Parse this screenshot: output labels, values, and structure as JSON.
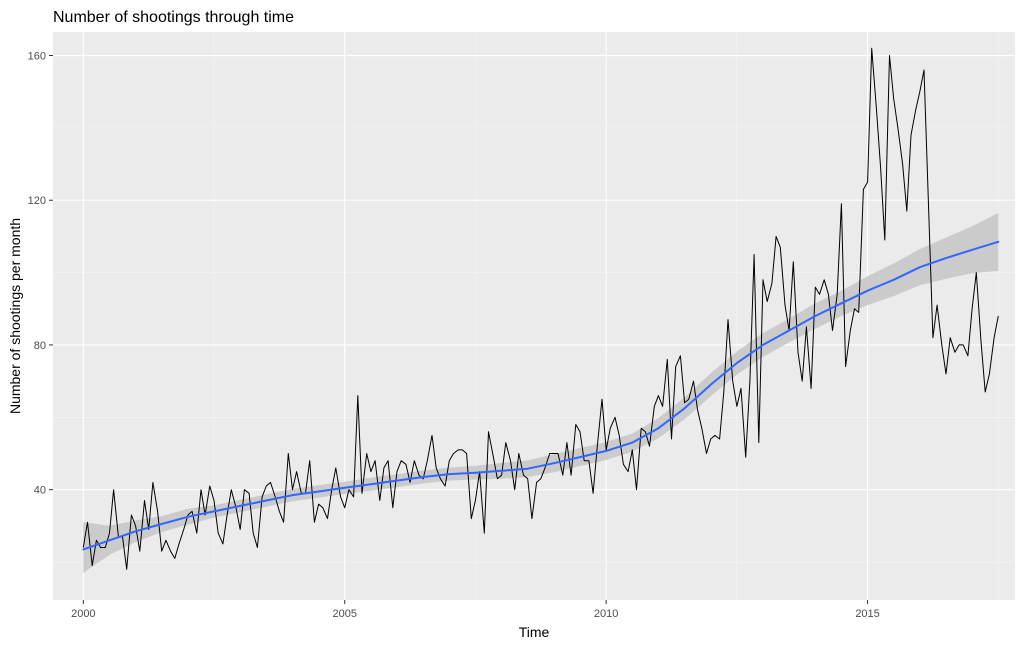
{
  "chart_data": {
    "type": "line",
    "title": "Number of shootings through time",
    "xlabel": "Time",
    "ylabel": "Number of shootings per month",
    "xlim": [
      1999.42,
      2017.82
    ],
    "ylim": [
      9.5,
      166.5
    ],
    "x_ticks": [
      2000,
      2005,
      2010,
      2015
    ],
    "x_tick_labels": [
      "2000",
      "2005",
      "2010",
      "2015"
    ],
    "y_ticks": [
      40,
      80,
      120,
      160
    ],
    "y_tick_labels": [
      "40",
      "80",
      "120",
      "160"
    ],
    "grid": true,
    "legend": "none",
    "colors": {
      "panel": "#ebebeb",
      "grid_major": "#ffffff",
      "grid_minor": "#f5f5f5",
      "series": "#000000",
      "smooth": "#3366ff",
      "ribbon": "#c8c8c8"
    },
    "series": [
      {
        "kind": "monthly-counts",
        "color": "#000000",
        "x": [
          2000.0,
          2000.08,
          2000.17,
          2000.25,
          2000.33,
          2000.42,
          2000.5,
          2000.58,
          2000.67,
          2000.75,
          2000.83,
          2000.92,
          2001.0,
          2001.08,
          2001.17,
          2001.25,
          2001.33,
          2001.42,
          2001.5,
          2001.58,
          2001.67,
          2001.75,
          2001.83,
          2001.92,
          2002.0,
          2002.08,
          2002.17,
          2002.25,
          2002.33,
          2002.42,
          2002.5,
          2002.58,
          2002.67,
          2002.75,
          2002.83,
          2002.92,
          2003.0,
          2003.08,
          2003.17,
          2003.25,
          2003.33,
          2003.42,
          2003.5,
          2003.58,
          2003.67,
          2003.75,
          2003.83,
          2003.92,
          2004.0,
          2004.08,
          2004.17,
          2004.25,
          2004.33,
          2004.42,
          2004.5,
          2004.58,
          2004.67,
          2004.75,
          2004.83,
          2004.92,
          2005.0,
          2005.08,
          2005.17,
          2005.25,
          2005.33,
          2005.42,
          2005.5,
          2005.58,
          2005.67,
          2005.75,
          2005.83,
          2005.92,
          2006.0,
          2006.08,
          2006.17,
          2006.25,
          2006.33,
          2006.42,
          2006.5,
          2006.58,
          2006.67,
          2006.75,
          2006.83,
          2006.92,
          2007.0,
          2007.08,
          2007.17,
          2007.25,
          2007.33,
          2007.42,
          2007.5,
          2007.58,
          2007.67,
          2007.75,
          2007.83,
          2007.92,
          2008.0,
          2008.08,
          2008.17,
          2008.25,
          2008.33,
          2008.42,
          2008.5,
          2008.58,
          2008.67,
          2008.75,
          2008.83,
          2008.92,
          2009.0,
          2009.08,
          2009.17,
          2009.25,
          2009.33,
          2009.42,
          2009.5,
          2009.58,
          2009.67,
          2009.75,
          2009.83,
          2009.92,
          2010.0,
          2010.08,
          2010.17,
          2010.25,
          2010.33,
          2010.42,
          2010.5,
          2010.58,
          2010.67,
          2010.75,
          2010.83,
          2010.92,
          2011.0,
          2011.08,
          2011.17,
          2011.25,
          2011.33,
          2011.42,
          2011.5,
          2011.58,
          2011.67,
          2011.75,
          2011.83,
          2011.92,
          2012.0,
          2012.08,
          2012.17,
          2012.25,
          2012.33,
          2012.42,
          2012.5,
          2012.58,
          2012.67,
          2012.75,
          2012.83,
          2012.92,
          2013.0,
          2013.08,
          2013.17,
          2013.25,
          2013.33,
          2013.42,
          2013.5,
          2013.58,
          2013.67,
          2013.75,
          2013.83,
          2013.92,
          2014.0,
          2014.08,
          2014.17,
          2014.25,
          2014.33,
          2014.42,
          2014.5,
          2014.58,
          2014.67,
          2014.75,
          2014.83,
          2014.92,
          2015.0,
          2015.08,
          2015.17,
          2015.25,
          2015.33,
          2015.42,
          2015.5,
          2015.58,
          2015.67,
          2015.75,
          2015.83,
          2015.92,
          2016.0,
          2016.08,
          2016.17,
          2016.25,
          2016.33,
          2016.42,
          2016.5,
          2016.58,
          2016.67,
          2016.75,
          2016.83,
          2016.92,
          2017.0,
          2017.08,
          2017.17,
          2017.25,
          2017.33,
          2017.42,
          2017.5
        ],
        "values": [
          24,
          31,
          19,
          26,
          24,
          24,
          28,
          40,
          27,
          27,
          18,
          33,
          30,
          23,
          37,
          29,
          42,
          34,
          23,
          26,
          23,
          21,
          25,
          29,
          33,
          34,
          28,
          40,
          33,
          41,
          37,
          28,
          25,
          33,
          40,
          35,
          29,
          40,
          39,
          28,
          24,
          38,
          41,
          42,
          38,
          34,
          31,
          50,
          40,
          45,
          39,
          39,
          48,
          31,
          36,
          35,
          32,
          40,
          46,
          38,
          35,
          40,
          38,
          66,
          39,
          50,
          45,
          48,
          37,
          46,
          48,
          35,
          45,
          48,
          47,
          42,
          48,
          44,
          43,
          48,
          55,
          46,
          43,
          41,
          48,
          50,
          51,
          51,
          50,
          32,
          37,
          45,
          28,
          56,
          50,
          43,
          44,
          53,
          48,
          40,
          50,
          44,
          43,
          32,
          42,
          43,
          46,
          50,
          50,
          50,
          44,
          53,
          44,
          58,
          56,
          48,
          48,
          39,
          52,
          65,
          51,
          57,
          60,
          55,
          47,
          45,
          51,
          40,
          57,
          56,
          52,
          63,
          66,
          63,
          76,
          54,
          74,
          77,
          64,
          65,
          70,
          62,
          57,
          50,
          54,
          55,
          54,
          67,
          87,
          70,
          63,
          68,
          49,
          70,
          105,
          53,
          98,
          92,
          97,
          110,
          107,
          91,
          84,
          103,
          78,
          70,
          85,
          68,
          96,
          94,
          98,
          94,
          84,
          94,
          119,
          74,
          84,
          90,
          89,
          123,
          125,
          162,
          145,
          129,
          109,
          160,
          148,
          140,
          130,
          117,
          138,
          145,
          150,
          156,
          117,
          82,
          91,
          80,
          72,
          82,
          78,
          80,
          80,
          77,
          90,
          100,
          81,
          67,
          72,
          82,
          88
        ]
      },
      {
        "kind": "smooth-fit",
        "color": "#3366ff",
        "x": [
          2000.0,
          2000.5,
          2001.0,
          2001.5,
          2002.0,
          2002.5,
          2003.0,
          2003.5,
          2004.0,
          2004.5,
          2005.0,
          2005.5,
          2006.0,
          2006.5,
          2007.0,
          2007.5,
          2008.0,
          2008.5,
          2009.0,
          2009.5,
          2010.0,
          2010.5,
          2011.0,
          2011.5,
          2012.0,
          2012.5,
          2013.0,
          2013.5,
          2014.0,
          2014.5,
          2015.0,
          2015.5,
          2016.0,
          2016.5,
          2017.0,
          2017.5
        ],
        "values": [
          23.5,
          26.0,
          28.5,
          30.5,
          32.5,
          34.0,
          35.5,
          37.0,
          38.5,
          39.5,
          40.5,
          41.5,
          42.5,
          43.5,
          44.3,
          44.7,
          45.2,
          45.8,
          47.3,
          49.0,
          50.7,
          53.0,
          57.0,
          62.5,
          69.0,
          75.0,
          80.0,
          84.0,
          88.0,
          91.5,
          95.0,
          98.0,
          101.5,
          104.0,
          106.3,
          108.5
        ],
        "lower": [
          17.0,
          22.0,
          25.5,
          28.3,
          30.3,
          32.3,
          33.8,
          35.3,
          36.8,
          37.8,
          38.8,
          39.7,
          40.7,
          41.7,
          42.5,
          42.8,
          43.0,
          43.5,
          44.8,
          46.5,
          48.2,
          50.5,
          54.2,
          59.5,
          65.8,
          71.8,
          76.7,
          80.7,
          84.5,
          88.0,
          91.0,
          93.5,
          96.5,
          98.3,
          99.8,
          100.5
        ],
        "upper": [
          31.0,
          30.0,
          31.5,
          32.7,
          34.7,
          35.7,
          37.2,
          38.7,
          40.2,
          41.2,
          42.2,
          43.3,
          44.3,
          45.3,
          46.1,
          46.6,
          47.4,
          48.1,
          49.8,
          51.5,
          53.2,
          55.5,
          59.8,
          65.5,
          72.2,
          78.2,
          83.3,
          87.3,
          91.5,
          95.0,
          99.0,
          102.5,
          106.5,
          109.7,
          112.8,
          116.5
        ]
      }
    ]
  }
}
